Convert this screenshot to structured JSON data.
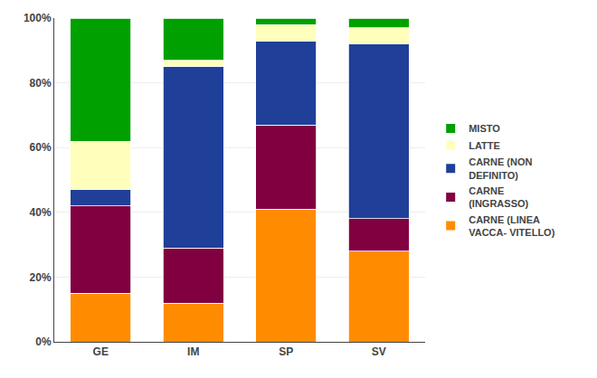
{
  "chart_data": {
    "type": "bar",
    "stacked": true,
    "categories": [
      "GE",
      "IM",
      "SP",
      "SV"
    ],
    "series": [
      {
        "name": "CARNE (LINEA\nVACCA- VITELLO)",
        "color": "#FF8C00",
        "values": [
          15,
          12,
          41,
          28
        ]
      },
      {
        "name": "CARNE\n(INGRASSO)",
        "color": "#800040",
        "values": [
          27,
          17,
          26,
          10
        ]
      },
      {
        "name": "CARNE (NON\nDEFINITO)",
        "color": "#1F3F99",
        "values": [
          5,
          56,
          26,
          54
        ]
      },
      {
        "name": "LATTE",
        "color": "#FFFFBB",
        "values": [
          15,
          2,
          5,
          5
        ]
      },
      {
        "name": "MISTO",
        "color": "#00A000",
        "values": [
          38,
          13,
          2,
          3
        ]
      }
    ],
    "ylim": [
      0,
      100
    ],
    "yticks": [
      {
        "value": 0,
        "label": "0%"
      },
      {
        "value": 20,
        "label": "20%"
      },
      {
        "value": 40,
        "label": "40%"
      },
      {
        "value": 60,
        "label": "60%"
      },
      {
        "value": 80,
        "label": "80%"
      },
      {
        "value": 100,
        "label": "100%"
      }
    ],
    "grid": true,
    "legend": "right"
  }
}
